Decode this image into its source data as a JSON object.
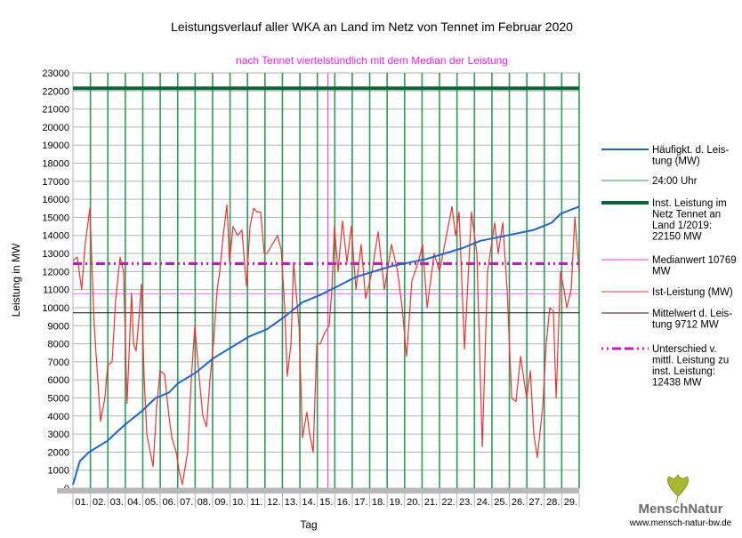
{
  "chart_data": {
    "type": "line",
    "title": "Leistungsverlauf aller WKA an Land im Netz von Tennet im Februar 2020",
    "subtitle": "nach Tennet viertelstündlich mit dem Median der Leistung",
    "xlabel": "Tag",
    "ylabel": "Leistung in MW",
    "ylim": [
      0,
      23000
    ],
    "xlim": [
      0,
      29
    ],
    "yticks": [
      0,
      1000,
      2000,
      3000,
      4000,
      5000,
      6000,
      7000,
      8000,
      9000,
      10000,
      11000,
      12000,
      13000,
      14000,
      15000,
      16000,
      17000,
      18000,
      19000,
      20000,
      21000,
      22000,
      23000
    ],
    "xtick_labels": [
      "01.",
      "02.",
      "03.",
      "04.",
      "05.",
      "06.",
      "07.",
      "08.",
      "09.",
      "10.",
      "11.",
      "12.",
      "13.",
      "14.",
      "15.",
      "16.",
      "17.",
      "18.",
      "19.",
      "20.",
      "21.",
      "22.",
      "23.",
      "24.",
      "25.",
      "26.",
      "27.",
      "28.",
      "29."
    ],
    "grid": true,
    "legend_position": "right",
    "legend": [
      {
        "label": "Häufigkt. d. Leis-tung (MW)",
        "lines": [
          "Häufigkt. d. Leis-",
          "tung (MW)"
        ],
        "color": "#1a66cc",
        "style": "solid-medium"
      },
      {
        "label": "24:00 Uhr",
        "lines": [
          "24:00 Uhr"
        ],
        "color": "#2e9a5e",
        "style": "solid-thin"
      },
      {
        "label": "Inst. Leistung im Netz Tennet an Land 1/2019: 22150 MW",
        "lines": [
          "Inst. Leistung im",
          "Netz Tennet an",
          "Land 1/2019:",
          "22150  MW"
        ],
        "color": "#0a6632",
        "style": "solid-thick"
      },
      {
        "label": "Medianwert 10769 MW",
        "lines": [
          "Medianwert 10769",
          "MW"
        ],
        "color": "#ff33ff",
        "style": "solid-thin"
      },
      {
        "label": "Ist-Leistung (MW)",
        "lines": [
          "Ist-Leistung (MW)"
        ],
        "color": "#ee3333",
        "style": "solid-thin"
      },
      {
        "label": "Mittelwert d. Leistung 9712 MW",
        "lines": [
          "Mittelwert d. Leis-",
          "tung 9712 MW"
        ],
        "color": "#550011",
        "style": "solid-thin"
      },
      {
        "label": "Unterschied v. mittl. Leistung zu inst. Leistung: 12438 MW",
        "lines": [
          "Unterschied v.",
          "mittl. Leistung zu",
          "inst. Leistung:",
          "12438 MW"
        ],
        "color": "#cc11cc",
        "style": "dashdot"
      }
    ],
    "hlines": [
      {
        "name": "installed-capacity",
        "value": 22150,
        "color": "#0a6632"
      },
      {
        "name": "median",
        "value": 10769,
        "color": "#ff66ff"
      },
      {
        "name": "mean",
        "value": 9712,
        "color": "#111111"
      },
      {
        "name": "difference",
        "value": 12438,
        "color": "#cc11cc"
      }
    ],
    "vline_magenta_day": 14.6,
    "series": [
      {
        "name": "Ist-Leistung (MW)",
        "color": "#ee3333",
        "points": [
          [
            0,
            12600
          ],
          [
            0.25,
            12800
          ],
          [
            0.5,
            11000
          ],
          [
            0.7,
            13500
          ],
          [
            0.97,
            15500
          ],
          [
            1.22,
            9000
          ],
          [
            1.58,
            3700
          ],
          [
            1.83,
            5000
          ],
          [
            1.99,
            6800
          ],
          [
            2.24,
            7000
          ],
          [
            2.45,
            10500
          ],
          [
            2.7,
            12800
          ],
          [
            2.9,
            12000
          ],
          [
            3.1,
            4700
          ],
          [
            3.36,
            10800
          ],
          [
            3.47,
            8000
          ],
          [
            3.62,
            7600
          ],
          [
            3.77,
            9300
          ],
          [
            3.92,
            11300
          ],
          [
            4.08,
            6000
          ],
          [
            4.23,
            3000
          ],
          [
            4.59,
            1200
          ],
          [
            4.79,
            4500
          ],
          [
            4.99,
            6500
          ],
          [
            5.25,
            6300
          ],
          [
            5.5,
            4000
          ],
          [
            5.66,
            2800
          ],
          [
            5.91,
            2000
          ],
          [
            6.07,
            1000
          ],
          [
            6.27,
            200
          ],
          [
            6.57,
            2000
          ],
          [
            6.78,
            6000
          ],
          [
            6.98,
            9000
          ],
          [
            7.24,
            6000
          ],
          [
            7.44,
            4000
          ],
          [
            7.65,
            3400
          ],
          [
            7.85,
            6000
          ],
          [
            8.05,
            8000
          ],
          [
            8.26,
            11000
          ],
          [
            8.41,
            12000
          ],
          [
            8.61,
            14000
          ],
          [
            8.82,
            15700
          ],
          [
            8.97,
            12500
          ],
          [
            9.17,
            14500
          ],
          [
            9.43,
            14000
          ],
          [
            9.68,
            14300
          ],
          [
            9.94,
            11200
          ],
          [
            10.14,
            14500
          ],
          [
            10.35,
            15500
          ],
          [
            10.55,
            15300
          ],
          [
            10.75,
            15300
          ],
          [
            10.96,
            13000
          ],
          [
            11.11,
            13000
          ],
          [
            11.42,
            13500
          ],
          [
            11.72,
            14000
          ],
          [
            11.93,
            13200
          ],
          [
            12.13,
            10000
          ],
          [
            12.28,
            6200
          ],
          [
            12.49,
            8000
          ],
          [
            12.64,
            12500
          ],
          [
            12.95,
            9000
          ],
          [
            13.15,
            2800
          ],
          [
            13.4,
            4200
          ],
          [
            13.56,
            3000
          ],
          [
            13.76,
            2000
          ],
          [
            13.97,
            8000
          ],
          [
            14.17,
            8000
          ],
          [
            14.42,
            8600
          ],
          [
            14.68,
            9000
          ],
          [
            14.83,
            11000
          ],
          [
            14.98,
            14500
          ],
          [
            15.19,
            12000
          ],
          [
            15.44,
            14800
          ],
          [
            15.7,
            12500
          ],
          [
            15.95,
            14500
          ],
          [
            16.21,
            11000
          ],
          [
            16.51,
            13500
          ],
          [
            16.77,
            10500
          ],
          [
            17.13,
            12000
          ],
          [
            17.48,
            14200
          ],
          [
            17.84,
            11000
          ],
          [
            18.25,
            13500
          ],
          [
            18.6,
            12000
          ],
          [
            18.86,
            10000
          ],
          [
            19.11,
            7300
          ],
          [
            19.42,
            11500
          ],
          [
            19.78,
            12500
          ],
          [
            20.03,
            13500
          ],
          [
            20.29,
            10000
          ],
          [
            20.69,
            13000
          ],
          [
            21.0,
            12000
          ],
          [
            21.3,
            13500
          ],
          [
            21.71,
            15600
          ],
          [
            21.92,
            14000
          ],
          [
            22.12,
            15300
          ],
          [
            22.43,
            7700
          ],
          [
            22.83,
            15300
          ],
          [
            23.14,
            13000
          ],
          [
            23.45,
            2300
          ],
          [
            23.75,
            12000
          ],
          [
            24.16,
            14700
          ],
          [
            24.36,
            13000
          ],
          [
            24.62,
            14700
          ],
          [
            24.87,
            11000
          ],
          [
            25.13,
            5000
          ],
          [
            25.38,
            4800
          ],
          [
            25.64,
            7300
          ],
          [
            25.99,
            5000
          ],
          [
            26.2,
            6500
          ],
          [
            26.4,
            3000
          ],
          [
            26.6,
            1700
          ],
          [
            26.91,
            4500
          ],
          [
            27.11,
            8000
          ],
          [
            27.32,
            10000
          ],
          [
            27.52,
            9800
          ],
          [
            27.68,
            5000
          ],
          [
            27.93,
            12000
          ],
          [
            28.13,
            11000
          ],
          [
            28.29,
            10000
          ],
          [
            28.54,
            11000
          ],
          [
            28.75,
            15000
          ],
          [
            29,
            12000
          ]
        ]
      },
      {
        "name": "Häufigkt. d. Leistung (MW)",
        "color": "#1a66cc",
        "points": [
          [
            0,
            200
          ],
          [
            0.4,
            1500
          ],
          [
            0.92,
            2000
          ],
          [
            1.94,
            2600
          ],
          [
            2.96,
            3500
          ],
          [
            3.98,
            4300
          ],
          [
            4.74,
            5000
          ],
          [
            5.5,
            5300
          ],
          [
            6.01,
            5800
          ],
          [
            7.03,
            6400
          ],
          [
            8.05,
            7200
          ],
          [
            9.07,
            7800
          ],
          [
            10.09,
            8400
          ],
          [
            11.11,
            8800
          ],
          [
            12.13,
            9500
          ],
          [
            13.15,
            10300
          ],
          [
            14.17,
            10700
          ],
          [
            15.19,
            11200
          ],
          [
            16.21,
            11700
          ],
          [
            17.23,
            12000
          ],
          [
            18.25,
            12300
          ],
          [
            19.27,
            12500
          ],
          [
            20.29,
            12700
          ],
          [
            21.3,
            13000
          ],
          [
            22.32,
            13300
          ],
          [
            23.34,
            13700
          ],
          [
            24.36,
            13900
          ],
          [
            25.38,
            14100
          ],
          [
            26.4,
            14300
          ],
          [
            27.42,
            14700
          ],
          [
            27.93,
            15200
          ],
          [
            29,
            15600
          ]
        ]
      }
    ]
  },
  "logo": {
    "name": "MenschNatur",
    "url": "www.mensch-natur-bw.de"
  }
}
